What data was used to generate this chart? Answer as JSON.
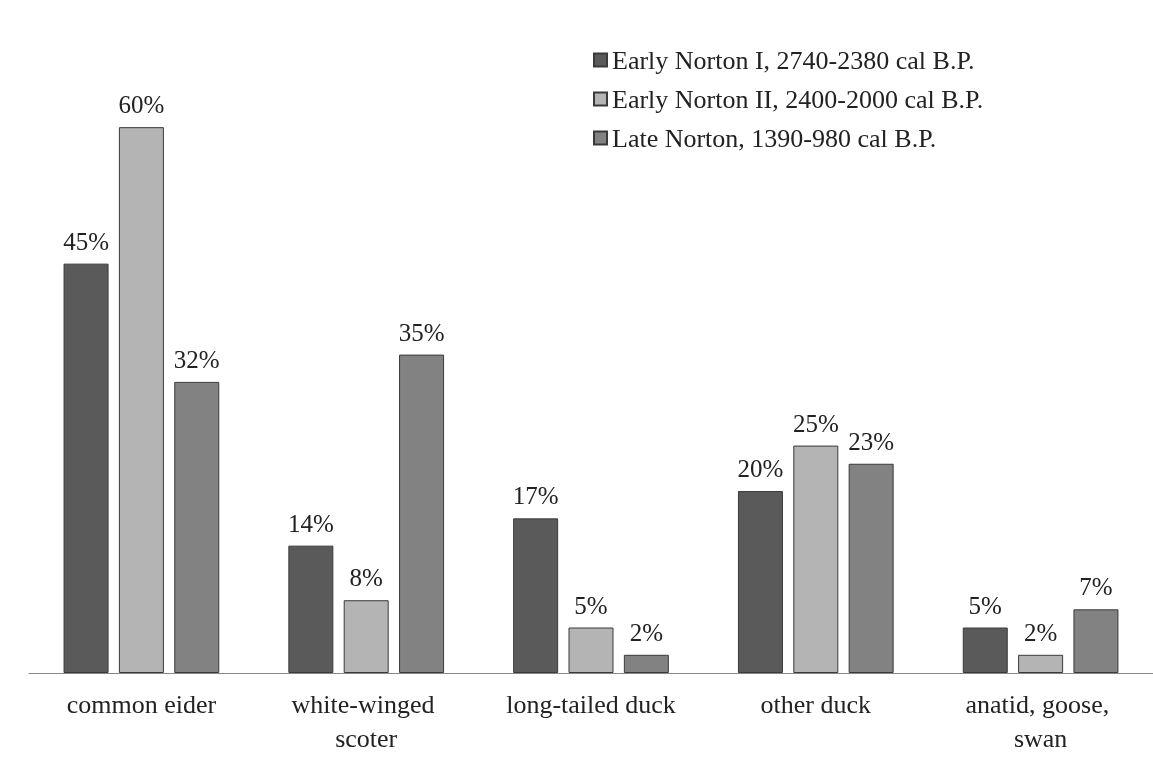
{
  "chart_data": {
    "type": "bar",
    "categories": [
      "common eider",
      "white-winged scoter",
      "long-tailed duck",
      "other duck",
      "anatid, goose, swan"
    ],
    "series": [
      {
        "name": "Early Norton I, 2740-2380 cal B.P.",
        "color": "#5a5a5a",
        "values": [
          45,
          14,
          17,
          20,
          5
        ],
        "value_labels": [
          "45%",
          "14%",
          "17%",
          "20%",
          "5%"
        ]
      },
      {
        "name": "Early Norton II, 2400-2000 cal B.P.",
        "color": "#b4b4b4",
        "values": [
          60,
          8,
          5,
          25,
          2
        ],
        "value_labels": [
          "60%",
          "8%",
          "5%",
          "25%",
          "2%"
        ]
      },
      {
        "name": "Late Norton, 1390-980 cal B.P.",
        "color": "#828282",
        "values": [
          32,
          35,
          2,
          23,
          7
        ],
        "value_labels": [
          "32%",
          "35%",
          "2%",
          "23%",
          "7%"
        ]
      }
    ],
    "legend": "top right"
  }
}
